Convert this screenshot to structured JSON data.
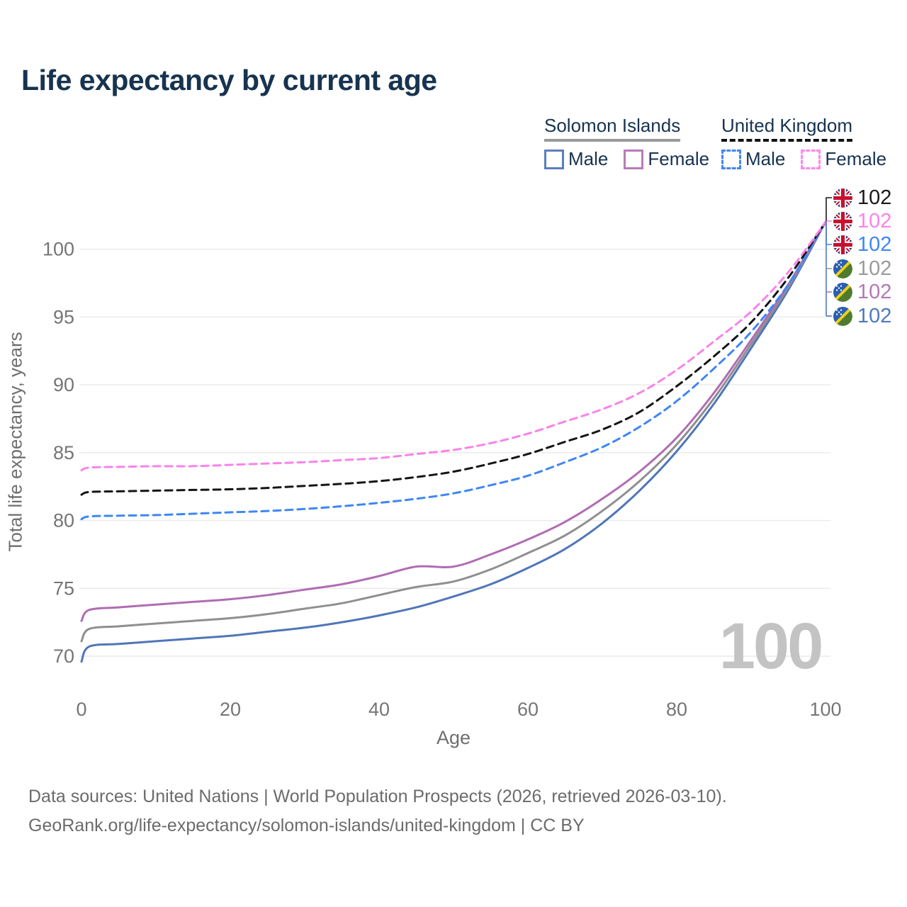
{
  "title": "Life expectancy by current age",
  "legend": {
    "groups": [
      {
        "label": "Solomon Islands",
        "line_style": "solid",
        "items": [
          {
            "label": "Male",
            "color": "#5b7fbe"
          },
          {
            "label": "Female",
            "color": "#b87cb8"
          }
        ]
      },
      {
        "label": "United Kingdom",
        "line_style": "dashed",
        "items": [
          {
            "label": "Male",
            "color": "#4285f4"
          },
          {
            "label": "Female",
            "color": "#fb8ae9"
          }
        ]
      }
    ]
  },
  "watermark": "100",
  "end_labels": [
    {
      "flag": "uk",
      "value": "102",
      "color": "#1a1a1a"
    },
    {
      "flag": "uk",
      "value": "102",
      "color": "#fb82e9"
    },
    {
      "flag": "uk",
      "value": "102",
      "color": "#3e86f7"
    },
    {
      "flag": "si",
      "value": "102",
      "color": "#9a9a9a"
    },
    {
      "flag": "si",
      "value": "102",
      "color": "#b478b4"
    },
    {
      "flag": "si",
      "value": "102",
      "color": "#4e79be"
    }
  ],
  "footer": {
    "line1": "Data sources: United Nations | World Population Prospects (2026, retrieved 2026-03-10).",
    "line2": "GeoRank.org/life-expectancy/solomon-islands/united-kingdom | CC BY"
  },
  "chart_data": {
    "type": "line",
    "title": "Life expectancy by current age",
    "xlabel": "Age",
    "ylabel": "Total life expectancy, years",
    "xlim": [
      0,
      100
    ],
    "ylim": [
      69,
      103
    ],
    "x_ticks": [
      0,
      20,
      40,
      60,
      80,
      100
    ],
    "y_ticks": [
      70,
      75,
      80,
      85,
      90,
      95,
      100
    ],
    "grid": "horizontal",
    "legend_position": "top-right",
    "x": [
      0,
      1,
      5,
      10,
      15,
      20,
      25,
      30,
      35,
      40,
      45,
      50,
      55,
      60,
      65,
      70,
      75,
      80,
      85,
      90,
      95,
      100
    ],
    "series": [
      {
        "name": "Solomon Islands Male",
        "country": "Solomon Islands",
        "sex": "Male",
        "color": "#4f76b8",
        "dash": false,
        "values": [
          69.6,
          70.7,
          70.9,
          71.1,
          71.3,
          71.5,
          71.8,
          72.1,
          72.5,
          73.0,
          73.6,
          74.4,
          75.3,
          76.5,
          77.9,
          79.8,
          82.2,
          85.1,
          88.6,
          92.7,
          97.0,
          102
        ]
      },
      {
        "name": "Solomon Islands Total",
        "country": "Solomon Islands",
        "sex": "Both",
        "color": "#8f8f8f",
        "dash": false,
        "values": [
          71.1,
          72.0,
          72.2,
          72.4,
          72.6,
          72.8,
          73.1,
          73.5,
          73.9,
          74.5,
          75.1,
          75.5,
          76.4,
          77.6,
          78.9,
          80.7,
          82.9,
          85.6,
          89.0,
          93.0,
          97.2,
          102
        ]
      },
      {
        "name": "Solomon Islands Female",
        "country": "Solomon Islands",
        "sex": "Female",
        "color": "#b06cb3",
        "dash": false,
        "values": [
          72.6,
          73.4,
          73.6,
          73.8,
          74.0,
          74.2,
          74.5,
          74.9,
          75.3,
          75.9,
          76.6,
          76.6,
          77.5,
          78.6,
          79.9,
          81.6,
          83.6,
          86.1,
          89.4,
          93.3,
          97.4,
          102
        ]
      },
      {
        "name": "United Kingdom Male",
        "country": "United Kingdom",
        "sex": "Male",
        "color": "#3e86f7",
        "dash": true,
        "values": [
          80.1,
          80.3,
          80.35,
          80.4,
          80.5,
          80.6,
          80.7,
          80.85,
          81.05,
          81.3,
          81.6,
          82.0,
          82.6,
          83.3,
          84.3,
          85.4,
          86.9,
          88.8,
          91.2,
          93.9,
          97.4,
          102
        ]
      },
      {
        "name": "United Kingdom Total",
        "country": "United Kingdom",
        "sex": "Both",
        "color": "#151515",
        "dash": true,
        "values": [
          81.9,
          82.1,
          82.15,
          82.2,
          82.25,
          82.3,
          82.4,
          82.55,
          82.7,
          82.9,
          83.2,
          83.6,
          84.2,
          84.9,
          85.8,
          86.7,
          88.0,
          89.9,
          92.1,
          94.6,
          97.9,
          102
        ]
      },
      {
        "name": "United Kingdom Female",
        "country": "United Kingdom",
        "sex": "Female",
        "color": "#fb82e9",
        "dash": true,
        "values": [
          83.7,
          83.9,
          83.95,
          84.0,
          84.0,
          84.1,
          84.2,
          84.3,
          84.45,
          84.6,
          84.9,
          85.2,
          85.7,
          86.4,
          87.3,
          88.2,
          89.4,
          91.1,
          93.2,
          95.4,
          98.3,
          102
        ]
      }
    ]
  }
}
